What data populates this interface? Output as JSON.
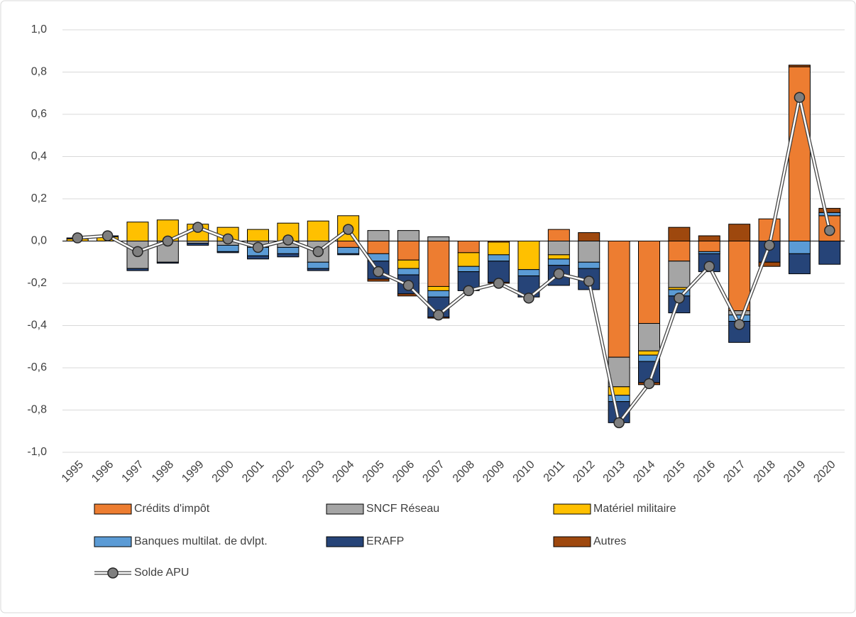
{
  "chart_data": {
    "type": "stacked_bar_line",
    "categories": [
      "1995",
      "1996",
      "1997",
      "1998",
      "1999",
      "2000",
      "2001",
      "2002",
      "2003",
      "2004",
      "2005",
      "2006",
      "2007",
      "2008",
      "2009",
      "2010",
      "2011",
      "2012",
      "2013",
      "2014",
      "2015",
      "2016",
      "2017",
      "2018",
      "2019",
      "2020"
    ],
    "series": [
      {
        "name": "Crédits d'impôt",
        "color": "#ED7D31",
        "values": [
          0,
          0,
          0,
          0,
          0,
          0,
          0,
          0,
          0,
          -0.03,
          -0.06,
          -0.09,
          -0.215,
          -0.055,
          -0.005,
          0,
          0.055,
          0,
          -0.55,
          -0.39,
          -0.095,
          -0.05,
          -0.33,
          0.105,
          0.825,
          0.12
        ]
      },
      {
        "name": "SNCF Réseau",
        "color": "#A5A5A5",
        "values": [
          0,
          0,
          -0.13,
          -0.1,
          -0.01,
          -0.02,
          -0.03,
          -0.03,
          -0.1,
          0,
          0.05,
          0.05,
          0.02,
          0,
          0,
          0,
          -0.065,
          -0.1,
          -0.14,
          -0.13,
          -0.125,
          0,
          -0.02,
          0,
          0,
          0
        ]
      },
      {
        "name": "Matériel militaire",
        "color": "#FFC000",
        "values": [
          0.01,
          0.02,
          0.09,
          0.1,
          0.08,
          0.065,
          0.055,
          0.085,
          0.095,
          0.12,
          0,
          -0.04,
          -0.02,
          -0.065,
          -0.06,
          -0.135,
          -0.02,
          0,
          -0.04,
          -0.02,
          -0.01,
          0,
          0,
          0,
          0,
          0
        ]
      },
      {
        "name": "Banques multilat. de dvlpt.",
        "color": "#5B9BD5",
        "values": [
          0,
          0,
          0,
          0,
          0,
          -0.03,
          -0.04,
          -0.03,
          -0.03,
          -0.03,
          -0.035,
          -0.03,
          -0.03,
          -0.025,
          -0.03,
          -0.03,
          -0.03,
          -0.03,
          -0.03,
          -0.03,
          -0.03,
          -0.01,
          -0.03,
          0,
          -0.06,
          0.015
        ]
      },
      {
        "name": "ERAFP",
        "color": "#264478",
        "values": [
          0.005,
          0.005,
          -0.01,
          -0.005,
          -0.01,
          -0.005,
          -0.015,
          -0.015,
          -0.01,
          -0.005,
          -0.085,
          -0.09,
          -0.095,
          -0.09,
          -0.1,
          -0.1,
          -0.095,
          -0.1,
          -0.1,
          -0.1,
          -0.08,
          -0.085,
          -0.1,
          -0.1,
          -0.095,
          -0.11
        ]
      },
      {
        "name": "Autres",
        "color": "#9E480E",
        "values": [
          0,
          0,
          0,
          0,
          0,
          0,
          0,
          0,
          0,
          0,
          -0.01,
          -0.01,
          -0.005,
          0,
          -0.005,
          0,
          0,
          0.04,
          0,
          -0.01,
          0.065,
          0.025,
          0.08,
          -0.02,
          0.008,
          0.02
        ]
      }
    ],
    "line_series": {
      "name": "Solde APU",
      "color": "#7F7F7F",
      "values": [
        0.015,
        0.025,
        -0.05,
        0,
        0.065,
        0.01,
        -0.03,
        0.005,
        -0.05,
        0.055,
        -0.145,
        -0.21,
        -0.35,
        -0.235,
        -0.2,
        -0.27,
        -0.155,
        -0.19,
        -0.86,
        -0.675,
        -0.27,
        -0.12,
        -0.395,
        -0.02,
        0.68,
        0.05
      ]
    },
    "ylim": [
      -1.0,
      1.0
    ],
    "yticks": [
      {
        "value": -1.0,
        "label": "-1,0"
      },
      {
        "value": -0.8,
        "label": "-0,8"
      },
      {
        "value": -0.6,
        "label": "-0,6"
      },
      {
        "value": -0.4,
        "label": "-0,4"
      },
      {
        "value": -0.2,
        "label": "-0,2"
      },
      {
        "value": 0,
        "label": "0,0"
      },
      {
        "value": 0.2,
        "label": "0,2"
      },
      {
        "value": 0.4,
        "label": "0,4"
      },
      {
        "value": 0.6,
        "label": "0,6"
      },
      {
        "value": 0.8,
        "label": "0,8"
      },
      {
        "value": 1.0,
        "label": "1,0"
      }
    ],
    "grid": true
  }
}
